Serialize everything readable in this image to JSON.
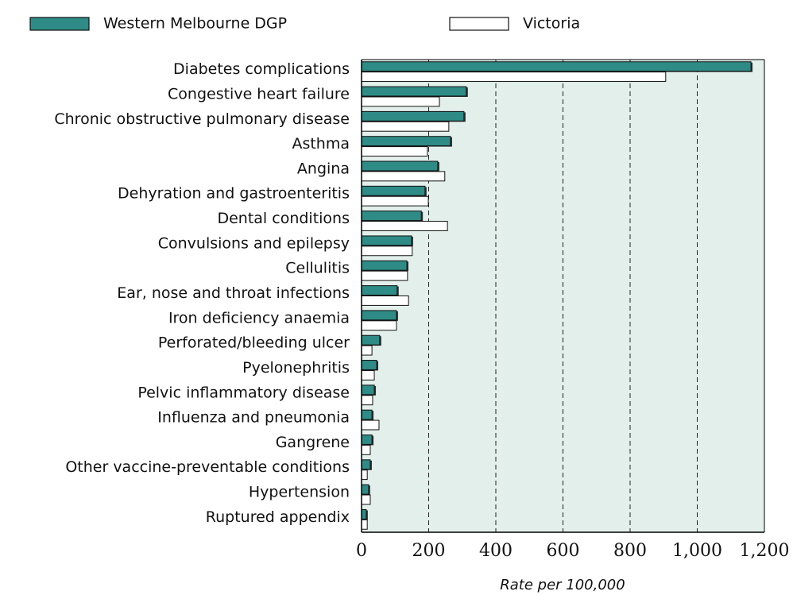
{
  "chart_data": {
    "type": "barh",
    "categories": [
      "Diabetes complications",
      "Congestive heart failure",
      "Chronic obstructive pulmonary disease",
      "Asthma",
      "Angina",
      "Dehyration and gastroenteritis",
      "Dental conditions",
      "Convulsions and epilepsy",
      "Cellulitis",
      "Ear, nose and throat infections",
      "Iron deficiency anaemia",
      "Perforated/bleeding ulcer",
      "Pyelonephritis",
      "Pelvic inflammatory disease",
      "Influenza and pneumonia",
      "Gangrene",
      "Other vaccine-preventable conditions",
      "Hypertension",
      "Ruptured appendix"
    ],
    "series": [
      {
        "name": "Western Melbourne DGP",
        "color": "#2e8b86",
        "values": [
          1160,
          312,
          305,
          265,
          227,
          189,
          178,
          149,
          135,
          106,
          104,
          54,
          45,
          38,
          31,
          31,
          26,
          21,
          14
        ]
      },
      {
        "name": "Victoria",
        "color": "#ffffff",
        "values": [
          906,
          232,
          260,
          196,
          248,
          199,
          256,
          151,
          137,
          140,
          104,
          31,
          38,
          33,
          52,
          26,
          17,
          26,
          17
        ]
      }
    ],
    "xlabel": "Rate per 100,000",
    "xlim": [
      0,
      1200
    ],
    "xticks": [
      0,
      200,
      400,
      600,
      800,
      {
        "value": 1000,
        "label": "1,000"
      },
      {
        "value": 1200,
        "label": "1,200"
      }
    ],
    "grid": true,
    "legend": "top"
  }
}
